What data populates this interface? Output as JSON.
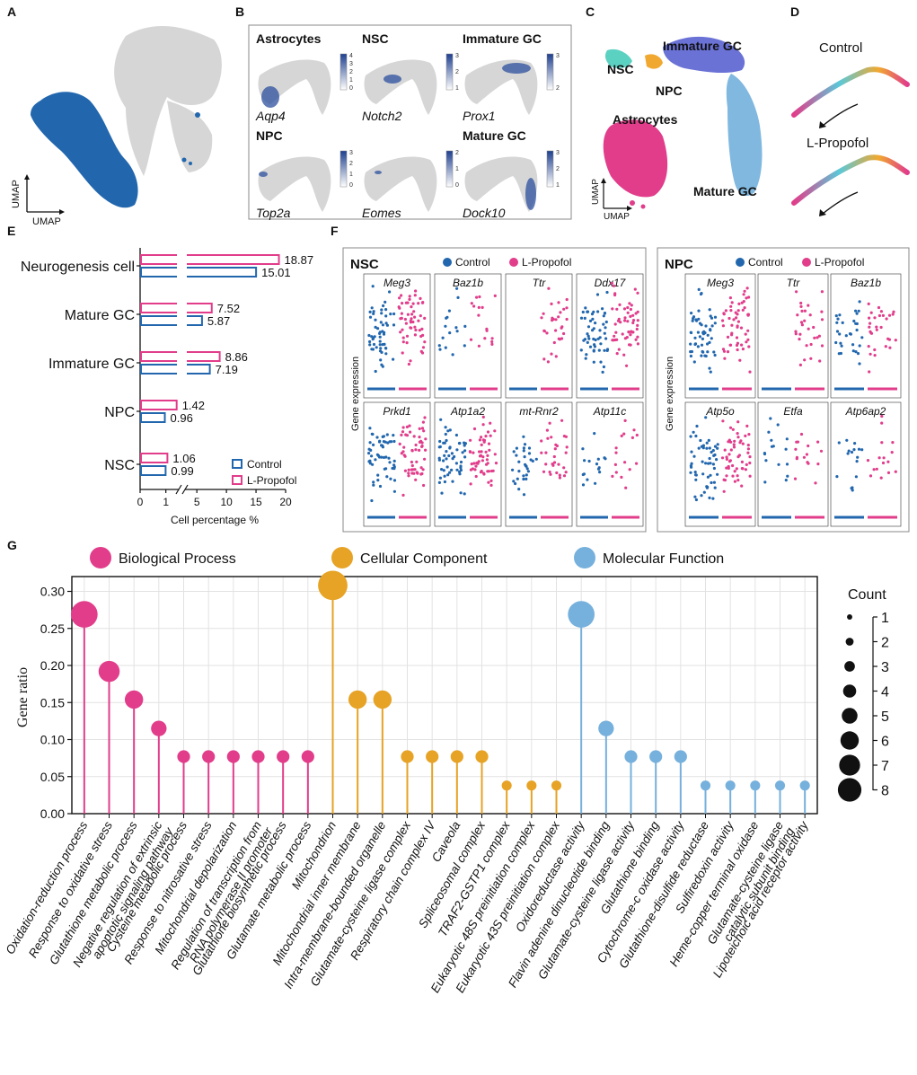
{
  "panels": {
    "A": {
      "letter": "A",
      "x_label": "UMAP",
      "y_label": "UMAP"
    },
    "B": {
      "letter": "B",
      "tiles": [
        {
          "title": "Astrocytes",
          "gene": "Aqp4",
          "scale": [
            "4",
            "3",
            "2",
            "1",
            "0"
          ]
        },
        {
          "title": "NSC",
          "gene": "Notch2",
          "scale": [
            "3",
            "2",
            "1"
          ]
        },
        {
          "title": "Immature GC",
          "gene": "Prox1",
          "scale": [
            "3",
            "2"
          ]
        },
        {
          "title": "NPC",
          "gene": "Top2a",
          "scale": [
            "3",
            "2",
            "1",
            "0"
          ]
        },
        {
          "title": "",
          "gene": "Eomes",
          "scale": [
            "2",
            "1",
            "0"
          ]
        },
        {
          "title": "Mature GC",
          "gene": "Dock10",
          "scale": [
            "3",
            "2",
            "1"
          ]
        }
      ]
    },
    "C": {
      "letter": "C",
      "labels": [
        "Immature GC",
        "NSC",
        "NPC",
        "Astrocytes",
        "Mature GC"
      ],
      "x_label": "UMAP",
      "y_label": "UMAP"
    },
    "D": {
      "letter": "D",
      "conditions": [
        "Control",
        "L-Propofol"
      ]
    },
    "E": {
      "letter": "E"
    },
    "F": {
      "letter": "F",
      "y_label": "Gene expression",
      "legend": [
        "Control",
        "L-Propofol"
      ],
      "nsc": {
        "title": "NSC",
        "genes_top": [
          "Meg3",
          "Baz1b",
          "Ttr",
          "Ddx17"
        ],
        "genes_bottom": [
          "Prkd1",
          "Atp1a2",
          "mt-Rnr2",
          "Atp11c"
        ]
      },
      "npc": {
        "title": "NPC",
        "genes_top": [
          "Meg3",
          "Ttr",
          "Baz1b"
        ],
        "genes_bottom": [
          "Atp5o",
          "Etfa",
          "Atp6ap2"
        ]
      }
    },
    "G": {
      "letter": "G",
      "categories": [
        "Biological Process",
        "Cellular Component",
        "Molecular Function"
      ],
      "size_legend_title": "Count",
      "size_legend": [
        "1",
        "2",
        "3",
        "4",
        "5",
        "6",
        "7",
        "8"
      ]
    }
  },
  "colors": {
    "control": "#2267ae",
    "propofol": "#e13d8b",
    "bp": "#e13d8b",
    "cc": "#e6a326",
    "mf": "#76b0dc",
    "umap_gray": "#d6d6d6",
    "umap_blue": "#2267ae"
  },
  "chart_data": [
    {
      "panel": "E",
      "type": "bar",
      "orientation": "horizontal",
      "categories": [
        "Neurogenesis cell",
        "Mature GC",
        "Immature GC",
        "NPC",
        "NSC"
      ],
      "series": [
        {
          "name": "L-Propofol",
          "values": [
            18.87,
            7.52,
            8.86,
            1.42,
            1.06
          ],
          "labels": [
            "18.87",
            "7.52",
            "8.86",
            "1.42",
            "1.06"
          ]
        },
        {
          "name": "Control",
          "values": [
            15.01,
            5.87,
            7.19,
            0.96,
            0.99
          ],
          "labels": [
            "15.01",
            "5.87",
            "7.19",
            "0.96",
            "0.99"
          ]
        }
      ],
      "xlabel": "Cell percentage %",
      "x_ticks": [
        "0",
        "1",
        "5",
        "10",
        "15",
        "20"
      ],
      "axis_break": [
        1.5,
        3
      ]
    },
    {
      "panel": "G",
      "type": "scatter",
      "style": "lollipop",
      "ylabel": "Gene ratio",
      "y_ticks": [
        "0.00",
        "0.05",
        "0.10",
        "0.15",
        "0.20",
        "0.25",
        "0.30"
      ],
      "ylim": [
        0,
        0.32
      ],
      "points": [
        {
          "term": "Oxidation-reduction process",
          "ratio": 0.269,
          "count": 7,
          "category": "Biological Process"
        },
        {
          "term": "Response to oxidative stress",
          "ratio": 0.192,
          "count": 5,
          "category": "Biological Process"
        },
        {
          "term": "Glutathione metabolic process",
          "ratio": 0.154,
          "count": 4,
          "category": "Biological Process"
        },
        {
          "term": "Negative regulation of extrinsic\napoptotic signaling pathway",
          "ratio": 0.115,
          "count": 3,
          "category": "Biological Process"
        },
        {
          "term": "Cysteine metabolic process",
          "ratio": 0.077,
          "count": 2,
          "category": "Biological Process"
        },
        {
          "term": "Response to nitrosative stress",
          "ratio": 0.077,
          "count": 2,
          "category": "Biological Process"
        },
        {
          "term": "Mitochondrial depolarization",
          "ratio": 0.077,
          "count": 2,
          "category": "Biological Process"
        },
        {
          "term": "Regulation of transcription from\nRNA polymerase II promoter",
          "ratio": 0.077,
          "count": 2,
          "category": "Biological Process"
        },
        {
          "term": "Glutathione biosynthetic process",
          "ratio": 0.077,
          "count": 2,
          "category": "Biological Process"
        },
        {
          "term": "Glutamate metabolic process",
          "ratio": 0.077,
          "count": 2,
          "category": "Biological Process"
        },
        {
          "term": "Mitochondrion",
          "ratio": 0.308,
          "count": 8,
          "category": "Cellular Component"
        },
        {
          "term": "Mitochondrial inner membrane",
          "ratio": 0.154,
          "count": 4,
          "category": "Cellular Component"
        },
        {
          "term": "Intra-membrane-bounded organelle",
          "ratio": 0.154,
          "count": 4,
          "category": "Cellular Component"
        },
        {
          "term": "Glutamate-cysteine ligase complex",
          "ratio": 0.077,
          "count": 2,
          "category": "Cellular Component"
        },
        {
          "term": "Respiratory chain complex IV",
          "ratio": 0.077,
          "count": 2,
          "category": "Cellular Component"
        },
        {
          "term": "Caveola",
          "ratio": 0.077,
          "count": 2,
          "category": "Cellular Component"
        },
        {
          "term": "Spliceosomal complex",
          "ratio": 0.077,
          "count": 2,
          "category": "Cellular Component"
        },
        {
          "term": "TRAF2-GSTP1 complex",
          "ratio": 0.038,
          "count": 1,
          "category": "Cellular Component"
        },
        {
          "term": "Eukaryotic 48S preinitiation complex",
          "ratio": 0.038,
          "count": 1,
          "category": "Cellular Component"
        },
        {
          "term": "Eukaryotic 43S preinitiation complex",
          "ratio": 0.038,
          "count": 1,
          "category": "Cellular Component"
        },
        {
          "term": "Oxidoreductase activity",
          "ratio": 0.269,
          "count": 7,
          "category": "Molecular Function"
        },
        {
          "term": "Flavin adenine dinucleotide binding",
          "ratio": 0.115,
          "count": 3,
          "category": "Molecular Function"
        },
        {
          "term": "Glutamate-cysteine ligase activity",
          "ratio": 0.077,
          "count": 2,
          "category": "Molecular Function"
        },
        {
          "term": "Glutathione binding",
          "ratio": 0.077,
          "count": 2,
          "category": "Molecular Function"
        },
        {
          "term": "Cytochrome-c oxidase activity",
          "ratio": 0.077,
          "count": 2,
          "category": "Molecular Function"
        },
        {
          "term": "Glutathione-disulfide reductase",
          "ratio": 0.038,
          "count": 1,
          "category": "Molecular Function"
        },
        {
          "term": "Sulfiredoxin activity",
          "ratio": 0.038,
          "count": 1,
          "category": "Molecular Function"
        },
        {
          "term": "Heme-copper terminal oxidase",
          "ratio": 0.038,
          "count": 1,
          "category": "Molecular Function"
        },
        {
          "term": "Glutamate-cysteine ligase\ncatalytic subunit binding",
          "ratio": 0.038,
          "count": 1,
          "category": "Molecular Function"
        },
        {
          "term": "Lipoteichoic acid receptor activity",
          "ratio": 0.038,
          "count": 1,
          "category": "Molecular Function"
        }
      ]
    }
  ]
}
